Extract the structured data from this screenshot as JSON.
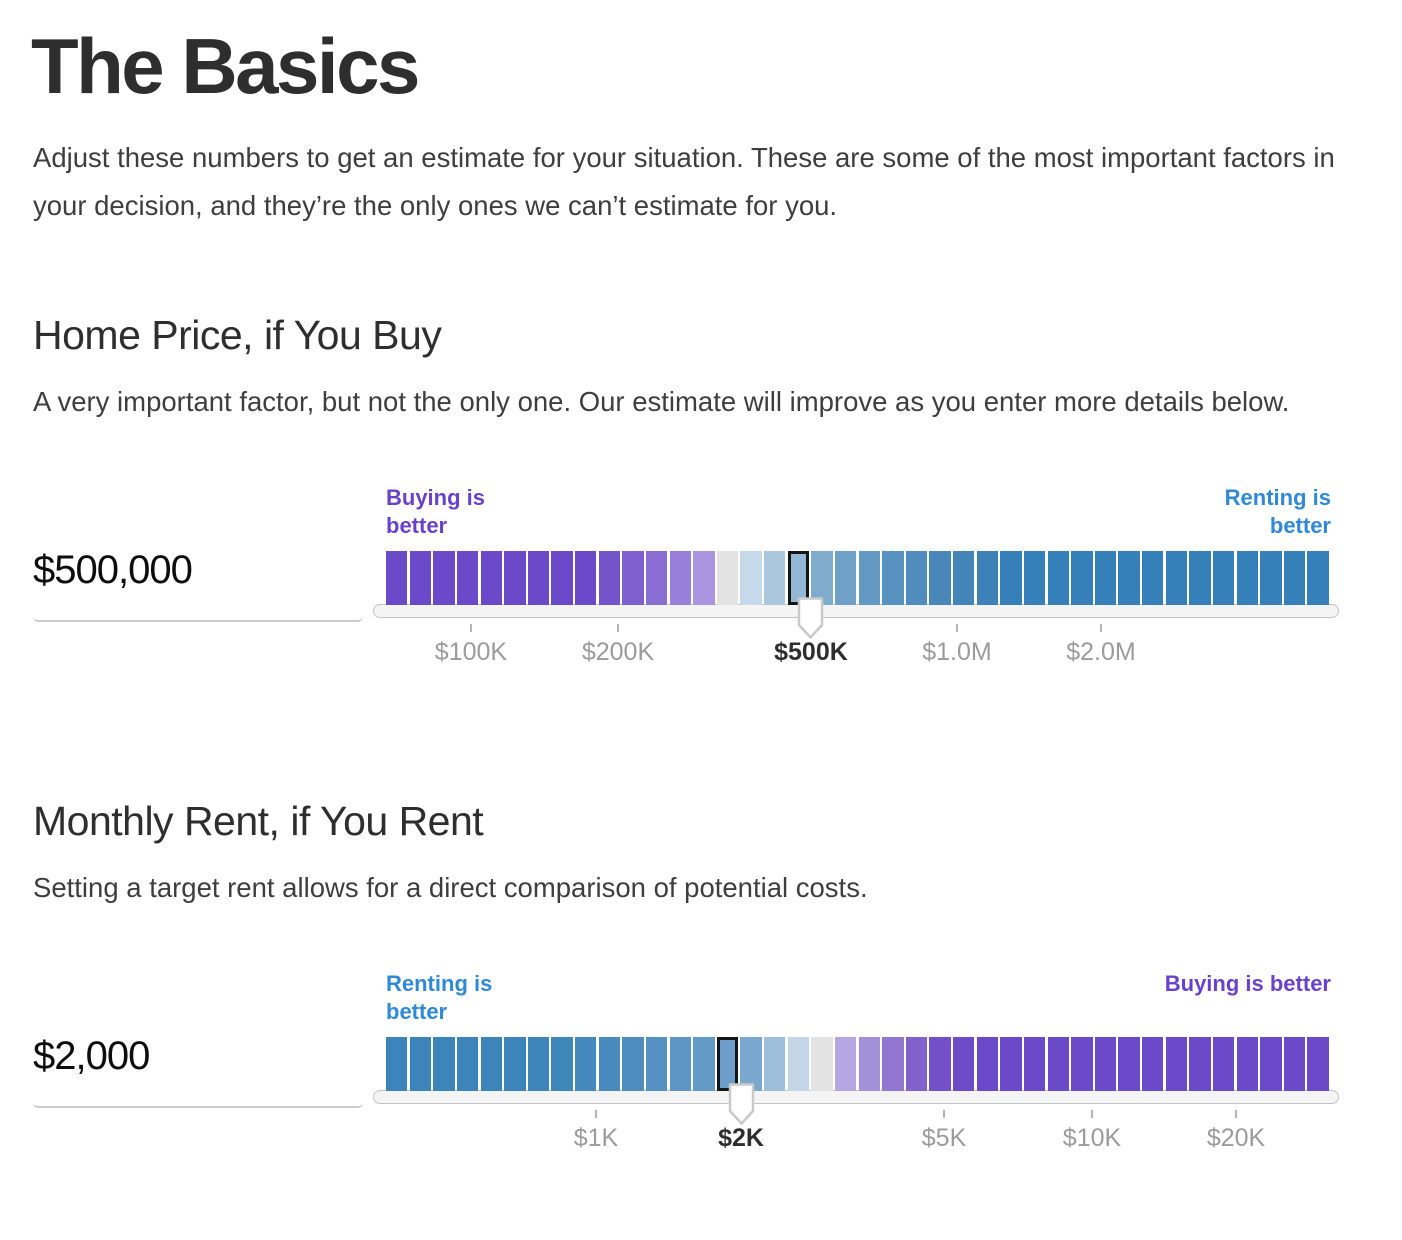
{
  "header": {
    "title": "The Basics",
    "intro": "Adjust these numbers to get an estimate for your situation. These are some of the most important factors in your decision, and they’re the only ones we can’t estimate for you."
  },
  "colors": {
    "heading": "#2e2e2e",
    "body_text": "#3e3e3e",
    "buying_label": "#6a41cd",
    "renting_label": "#2f89d8",
    "solid_purple": "#6b4ac9",
    "solid_blue": "#3580b9",
    "neutral_segment": "#e3e3e3",
    "tick_label": "#9b9b9b",
    "tick_label_selected": "#2e2e2e",
    "rail_fill": "#f4f4f4",
    "rail_border": "#c4c4c4",
    "selected_outline": "#151515",
    "pointer_fill": "#ffffff",
    "pointer_border": "#c9c9c9",
    "underline": "#cbcbcb"
  },
  "sections": [
    {
      "heading": "Home Price, if You Buy",
      "description": "A very important factor, but not the only one. Our estimate will improve as you enter more details below.",
      "value": "$500,000",
      "left_label": {
        "text": "Buying is better",
        "color_key": "buying_label"
      },
      "right_label": {
        "text": "Renting is better",
        "color_key": "renting_label"
      },
      "selected_index": 17,
      "pointer_pct": 44.97,
      "ticks": [
        {
          "label": "$100K",
          "pct": 8.99,
          "selected": false
        },
        {
          "label": "$200K",
          "pct": 24.55,
          "selected": false
        },
        {
          "label": "$500K",
          "pct": 44.97,
          "selected": true
        },
        {
          "label": "$1.0M",
          "pct": 60.42,
          "selected": false
        },
        {
          "label": "$2.0M",
          "pct": 75.66,
          "selected": false
        }
      ],
      "segments": [
        {
          "c": "#6b4ac9",
          "d": 0
        },
        {
          "c": "#6b4ac9",
          "d": 0
        },
        {
          "c": "#6b4ac9",
          "d": 0
        },
        {
          "c": "#6b4ac9",
          "d": 0
        },
        {
          "c": "#6b4ac9",
          "d": 0
        },
        {
          "c": "#6b4ac9",
          "d": 0
        },
        {
          "c": "#6b4ac9",
          "d": 0
        },
        {
          "c": "#6b4ac9",
          "d": 0
        },
        {
          "c": "#6b4ac9",
          "d": 0
        },
        {
          "c": "#7354cb",
          "d": 1
        },
        {
          "c": "#7e60d0",
          "d": 1
        },
        {
          "c": "#8a6ed4",
          "d": 1
        },
        {
          "c": "#987fd9",
          "d": 1
        },
        {
          "c": "#ab95e0",
          "d": 1
        },
        {
          "c": "#e3e3e3",
          "d": 0
        },
        {
          "c": "#c6d9ea",
          "d": 1
        },
        {
          "c": "#abc7de",
          "d": 1
        },
        {
          "c": "#93b7d4",
          "d": 1
        },
        {
          "c": "#7fabcc",
          "d": 0
        },
        {
          "c": "#6fa1c7",
          "d": 1
        },
        {
          "c": "#6399c3",
          "d": 1
        },
        {
          "c": "#5892c0",
          "d": 1
        },
        {
          "c": "#508cbd",
          "d": 1
        },
        {
          "c": "#4987bb",
          "d": 1
        },
        {
          "c": "#4384b9",
          "d": 1
        },
        {
          "c": "#3e81b8",
          "d": 1
        },
        {
          "c": "#3580b9",
          "d": 0
        },
        {
          "c": "#3580b9",
          "d": 0
        },
        {
          "c": "#3580b9",
          "d": 0
        },
        {
          "c": "#3580b9",
          "d": 0
        },
        {
          "c": "#3580b9",
          "d": 0
        },
        {
          "c": "#3580b9",
          "d": 0
        },
        {
          "c": "#3580b9",
          "d": 0
        },
        {
          "c": "#3580b9",
          "d": 0
        },
        {
          "c": "#3580b9",
          "d": 0
        },
        {
          "c": "#3580b9",
          "d": 0
        },
        {
          "c": "#3580b9",
          "d": 0
        },
        {
          "c": "#3580b9",
          "d": 0
        },
        {
          "c": "#3580b9",
          "d": 0
        },
        {
          "c": "#3580b9",
          "d": 0
        }
      ]
    },
    {
      "heading": "Monthly Rent, if You Rent",
      "description": "Setting a target rent allows for a direct comparison of potential costs.",
      "value": "$2,000",
      "left_label": {
        "text": "Renting is better",
        "color_key": "renting_label"
      },
      "right_label": {
        "text": "Buying is better",
        "color_key": "buying_label"
      },
      "selected_index": 14,
      "pointer_pct": 37.57,
      "ticks": [
        {
          "label": "$1K",
          "pct": 22.22,
          "selected": false
        },
        {
          "label": "$2K",
          "pct": 37.57,
          "selected": true
        },
        {
          "label": "$5K",
          "pct": 59.05,
          "selected": false
        },
        {
          "label": "$10K",
          "pct": 74.71,
          "selected": false
        },
        {
          "label": "$20K",
          "pct": 89.95,
          "selected": false
        }
      ],
      "segments": [
        {
          "c": "#3c84ba",
          "d": 0
        },
        {
          "c": "#3c84ba",
          "d": 0
        },
        {
          "c": "#3c84ba",
          "d": 0
        },
        {
          "c": "#3c84ba",
          "d": 0
        },
        {
          "c": "#3c84ba",
          "d": 0
        },
        {
          "c": "#3c84ba",
          "d": 0
        },
        {
          "c": "#3c84ba",
          "d": 0
        },
        {
          "c": "#3f86bb",
          "d": 1
        },
        {
          "c": "#4488bd",
          "d": 1
        },
        {
          "c": "#488abe",
          "d": 1
        },
        {
          "c": "#4e8dc0",
          "d": 1
        },
        {
          "c": "#5591c2",
          "d": 1
        },
        {
          "c": "#5d95c4",
          "d": 1
        },
        {
          "c": "#649ac6",
          "d": 1
        },
        {
          "c": "#6c9ec9",
          "d": 0
        },
        {
          "c": "#7aa7cd",
          "d": 0
        },
        {
          "c": "#9cbeda",
          "d": 1
        },
        {
          "c": "#c3d5e7",
          "d": 0
        },
        {
          "c": "#e3e3e3",
          "d": 0
        },
        {
          "c": "#b5a5e1",
          "d": 0
        },
        {
          "c": "#a48fd9",
          "d": 1
        },
        {
          "c": "#9177d2",
          "d": 1
        },
        {
          "c": "#8161cc",
          "d": 1
        },
        {
          "c": "#734fc8",
          "d": 1
        },
        {
          "c": "#6e4bc8",
          "d": 1
        },
        {
          "c": "#6b4ac9",
          "d": 0
        },
        {
          "c": "#6b4ac9",
          "d": 0
        },
        {
          "c": "#6b4ac9",
          "d": 0
        },
        {
          "c": "#6b4ac9",
          "d": 0
        },
        {
          "c": "#6b4ac9",
          "d": 0
        },
        {
          "c": "#6b4ac9",
          "d": 0
        },
        {
          "c": "#6b4ac9",
          "d": 0
        },
        {
          "c": "#6b4ac9",
          "d": 0
        },
        {
          "c": "#6b4ac9",
          "d": 0
        },
        {
          "c": "#6b4ac9",
          "d": 0
        },
        {
          "c": "#6b4ac9",
          "d": 0
        },
        {
          "c": "#6b4ac9",
          "d": 0
        },
        {
          "c": "#6b4ac9",
          "d": 0
        },
        {
          "c": "#6b4ac9",
          "d": 0
        },
        {
          "c": "#6b4ac9",
          "d": 0
        }
      ]
    }
  ]
}
